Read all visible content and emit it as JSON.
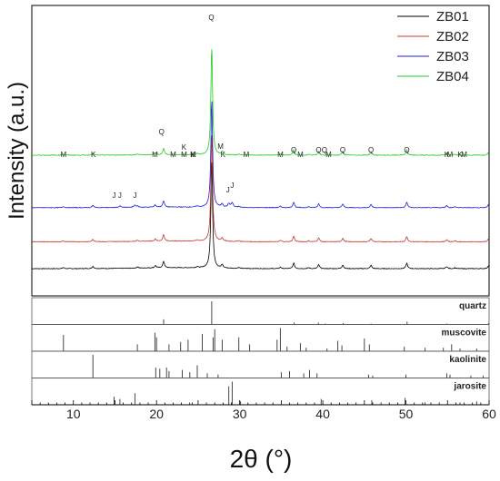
{
  "chart_data": {
    "type": "line",
    "xlabel": "2θ (°)",
    "ylabel": "Intensity (a.u.)",
    "xlim": [
      5,
      60
    ],
    "x_ticks": [
      10,
      20,
      30,
      40,
      50,
      60
    ],
    "x_tick_labels": [
      "10",
      "20",
      "30",
      "40",
      "50",
      "60"
    ],
    "legend_position": "top-right",
    "series": [
      {
        "name": "ZB01",
        "color": "#000000",
        "offset": 0,
        "background": 0.1
      },
      {
        "name": "ZB02",
        "color": "#c0392b",
        "offset": 1,
        "background": 0.08
      },
      {
        "name": "ZB03",
        "color": "#1f1fd0",
        "offset": 2,
        "background": 0.06
      },
      {
        "name": "ZB04",
        "color": "#22cc22",
        "offset": 3,
        "background": 0.05
      }
    ],
    "phase_peaks": [
      {
        "x": 20.85,
        "h": 0.35
      },
      {
        "x": 26.64,
        "h": 6.0
      },
      {
        "x": 36.5,
        "h": 0.3
      },
      {
        "x": 39.5,
        "h": 0.22
      },
      {
        "x": 42.4,
        "h": 0.2
      },
      {
        "x": 45.8,
        "h": 0.18
      },
      {
        "x": 50.1,
        "h": 0.3
      },
      {
        "x": 54.9,
        "h": 0.12
      },
      {
        "x": 59.9,
        "h": 0.14
      },
      {
        "x": 8.8,
        "h": 0.06
      },
      {
        "x": 12.35,
        "h": 0.12
      },
      {
        "x": 17.7,
        "h": 0.06
      },
      {
        "x": 19.85,
        "h": 0.12
      },
      {
        "x": 24.9,
        "h": 0.06
      },
      {
        "x": 27.9,
        "h": 0.18
      },
      {
        "x": 29.9,
        "h": 0.05
      },
      {
        "x": 34.9,
        "h": 0.08
      },
      {
        "x": 38.3,
        "h": 0.05
      },
      {
        "x": 55.9,
        "h": 0.05
      }
    ],
    "jarosite_peaks": [
      {
        "x": 15.6,
        "h": 0.08
      },
      {
        "x": 17.4,
        "h": 0.12
      },
      {
        "x": 28.7,
        "h": 0.2
      },
      {
        "x": 29.1,
        "h": 0.25
      }
    ],
    "peak_labels_top": [
      {
        "x": 8.8,
        "t": "M"
      },
      {
        "x": 12.4,
        "t": "K"
      },
      {
        "x": 20.6,
        "t": "Q"
      },
      {
        "x": 19.8,
        "t": "M"
      },
      {
        "x": 22.0,
        "t": "M"
      },
      {
        "x": 23.3,
        "t": "K"
      },
      {
        "x": 23.3,
        "t": "M"
      },
      {
        "x": 24.4,
        "t": "K"
      },
      {
        "x": 24.4,
        "t": "M"
      },
      {
        "x": 26.6,
        "t": "Q"
      },
      {
        "x": 27.7,
        "t": "M"
      },
      {
        "x": 28.0,
        "t": "K"
      },
      {
        "x": 30.8,
        "t": "M"
      },
      {
        "x": 34.9,
        "t": "M"
      },
      {
        "x": 36.5,
        "t": "Q"
      },
      {
        "x": 37.3,
        "t": "M"
      },
      {
        "x": 39.5,
        "t": "Q"
      },
      {
        "x": 40.2,
        "t": "Q"
      },
      {
        "x": 40.7,
        "t": "M"
      },
      {
        "x": 42.4,
        "t": "Q"
      },
      {
        "x": 45.8,
        "t": "Q"
      },
      {
        "x": 50.1,
        "t": "Q"
      },
      {
        "x": 54.9,
        "t": "K"
      },
      {
        "x": 55.3,
        "t": "M"
      },
      {
        "x": 56.5,
        "t": "K"
      },
      {
        "x": 57.0,
        "t": "M"
      }
    ],
    "peak_labels_jarosite": [
      {
        "x": 14.9,
        "t": "J"
      },
      {
        "x": 15.6,
        "t": "J"
      },
      {
        "x": 17.4,
        "t": "J"
      },
      {
        "x": 28.6,
        "t": "J"
      },
      {
        "x": 29.1,
        "t": "J"
      }
    ],
    "reference_patterns": [
      {
        "name": "quartz",
        "lines": [
          {
            "x": 20.86,
            "h": 0.22
          },
          {
            "x": 26.64,
            "h": 1.0
          },
          {
            "x": 36.55,
            "h": 0.08
          },
          {
            "x": 39.47,
            "h": 0.08
          },
          {
            "x": 40.3,
            "h": 0.04
          },
          {
            "x": 42.46,
            "h": 0.06
          },
          {
            "x": 45.8,
            "h": 0.04
          },
          {
            "x": 50.14,
            "h": 0.12
          },
          {
            "x": 54.9,
            "h": 0.04
          },
          {
            "x": 59.96,
            "h": 0.06
          }
        ]
      },
      {
        "name": "muscovite",
        "lines": [
          {
            "x": 8.8,
            "h": 0.7
          },
          {
            "x": 17.7,
            "h": 0.3
          },
          {
            "x": 19.8,
            "h": 0.8
          },
          {
            "x": 20.0,
            "h": 0.6
          },
          {
            "x": 21.5,
            "h": 0.3
          },
          {
            "x": 22.9,
            "h": 0.4
          },
          {
            "x": 23.8,
            "h": 0.5
          },
          {
            "x": 25.5,
            "h": 0.75
          },
          {
            "x": 26.8,
            "h": 0.6
          },
          {
            "x": 27.0,
            "h": 0.95
          },
          {
            "x": 27.9,
            "h": 0.5
          },
          {
            "x": 29.9,
            "h": 0.6
          },
          {
            "x": 31.2,
            "h": 0.3
          },
          {
            "x": 34.5,
            "h": 0.5
          },
          {
            "x": 34.9,
            "h": 1.0
          },
          {
            "x": 35.7,
            "h": 0.2
          },
          {
            "x": 37.3,
            "h": 0.35
          },
          {
            "x": 38.0,
            "h": 0.15
          },
          {
            "x": 40.5,
            "h": 0.12
          },
          {
            "x": 41.8,
            "h": 0.45
          },
          {
            "x": 42.3,
            "h": 0.25
          },
          {
            "x": 45.0,
            "h": 0.55
          },
          {
            "x": 45.6,
            "h": 0.3
          },
          {
            "x": 49.8,
            "h": 0.2
          },
          {
            "x": 52.3,
            "h": 0.15
          },
          {
            "x": 54.5,
            "h": 0.15
          },
          {
            "x": 55.5,
            "h": 0.3
          },
          {
            "x": 56.5,
            "h": 0.12
          },
          {
            "x": 58.5,
            "h": 0.12
          }
        ]
      },
      {
        "name": "kaolinite",
        "lines": [
          {
            "x": 12.35,
            "h": 1.0
          },
          {
            "x": 19.9,
            "h": 0.45
          },
          {
            "x": 20.4,
            "h": 0.4
          },
          {
            "x": 21.2,
            "h": 0.45
          },
          {
            "x": 21.5,
            "h": 0.3
          },
          {
            "x": 23.1,
            "h": 0.35
          },
          {
            "x": 24.0,
            "h": 0.25
          },
          {
            "x": 24.9,
            "h": 0.55
          },
          {
            "x": 26.1,
            "h": 0.2
          },
          {
            "x": 27.4,
            "h": 0.15
          },
          {
            "x": 35.0,
            "h": 0.25
          },
          {
            "x": 36.0,
            "h": 0.3
          },
          {
            "x": 37.7,
            "h": 0.2
          },
          {
            "x": 38.4,
            "h": 0.35
          },
          {
            "x": 39.3,
            "h": 0.2
          },
          {
            "x": 45.5,
            "h": 0.15
          },
          {
            "x": 46.0,
            "h": 0.1
          },
          {
            "x": 50.0,
            "h": 0.15
          },
          {
            "x": 54.9,
            "h": 0.2
          },
          {
            "x": 55.3,
            "h": 0.15
          },
          {
            "x": 57.8,
            "h": 0.1
          },
          {
            "x": 59.3,
            "h": 0.1
          }
        ]
      },
      {
        "name": "jarosite",
        "lines": [
          {
            "x": 14.9,
            "h": 0.35
          },
          {
            "x": 15.6,
            "h": 0.25
          },
          {
            "x": 17.4,
            "h": 0.5
          },
          {
            "x": 24.3,
            "h": 0.1
          },
          {
            "x": 28.7,
            "h": 0.8
          },
          {
            "x": 29.1,
            "h": 1.0
          },
          {
            "x": 30.1,
            "h": 0.15
          },
          {
            "x": 39.8,
            "h": 0.25
          },
          {
            "x": 45.9,
            "h": 0.2
          },
          {
            "x": 49.9,
            "h": 0.3
          },
          {
            "x": 52.3,
            "h": 0.1
          },
          {
            "x": 56.5,
            "h": 0.1
          },
          {
            "x": 58.5,
            "h": 0.15
          }
        ]
      }
    ]
  }
}
